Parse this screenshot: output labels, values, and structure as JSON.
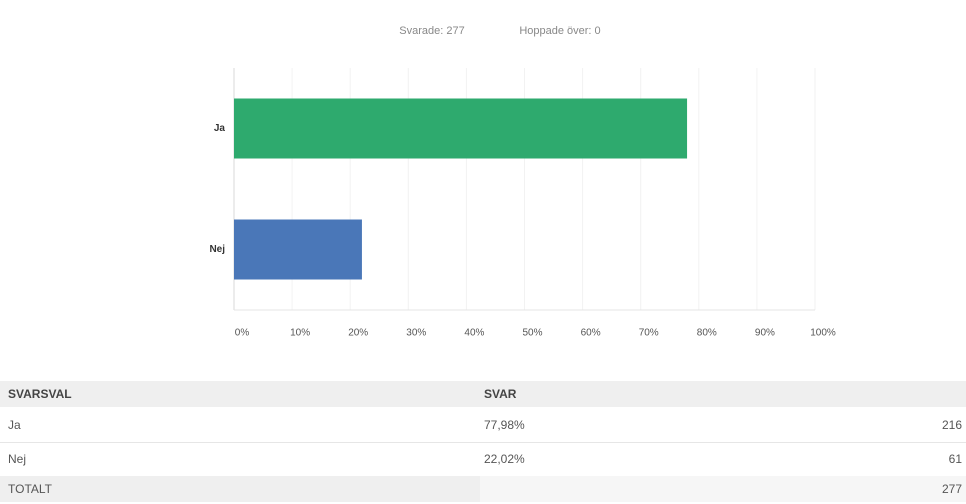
{
  "chart_data": {
    "type": "hbar",
    "annotations": [
      "Svarade: 277",
      "Hoppade över: 0"
    ],
    "categories": [
      "Ja",
      "Nej"
    ],
    "values": [
      77.98,
      22.02
    ],
    "colors": [
      "#2eaa6e",
      "#4a77b8"
    ],
    "xlim": [
      0,
      100
    ],
    "xticks": [
      {
        "value": 0,
        "label": "0%"
      },
      {
        "value": 10,
        "label": "10%"
      },
      {
        "value": 20,
        "label": "20%"
      },
      {
        "value": 30,
        "label": "30%"
      },
      {
        "value": 40,
        "label": "40%"
      },
      {
        "value": 50,
        "label": "50%"
      },
      {
        "value": 60,
        "label": "60%"
      },
      {
        "value": 70,
        "label": "70%"
      },
      {
        "value": 80,
        "label": "80%"
      },
      {
        "value": 90,
        "label": "90%"
      },
      {
        "value": 100,
        "label": "100%"
      }
    ],
    "grid": true
  },
  "table": {
    "headers": [
      "SVARSVAL",
      "SVAR"
    ],
    "rows": [
      [
        "Ja",
        "77,98%",
        "216"
      ],
      [
        "Nej",
        "22,02%",
        "61"
      ]
    ],
    "total": [
      "TOTALT",
      "277"
    ]
  }
}
